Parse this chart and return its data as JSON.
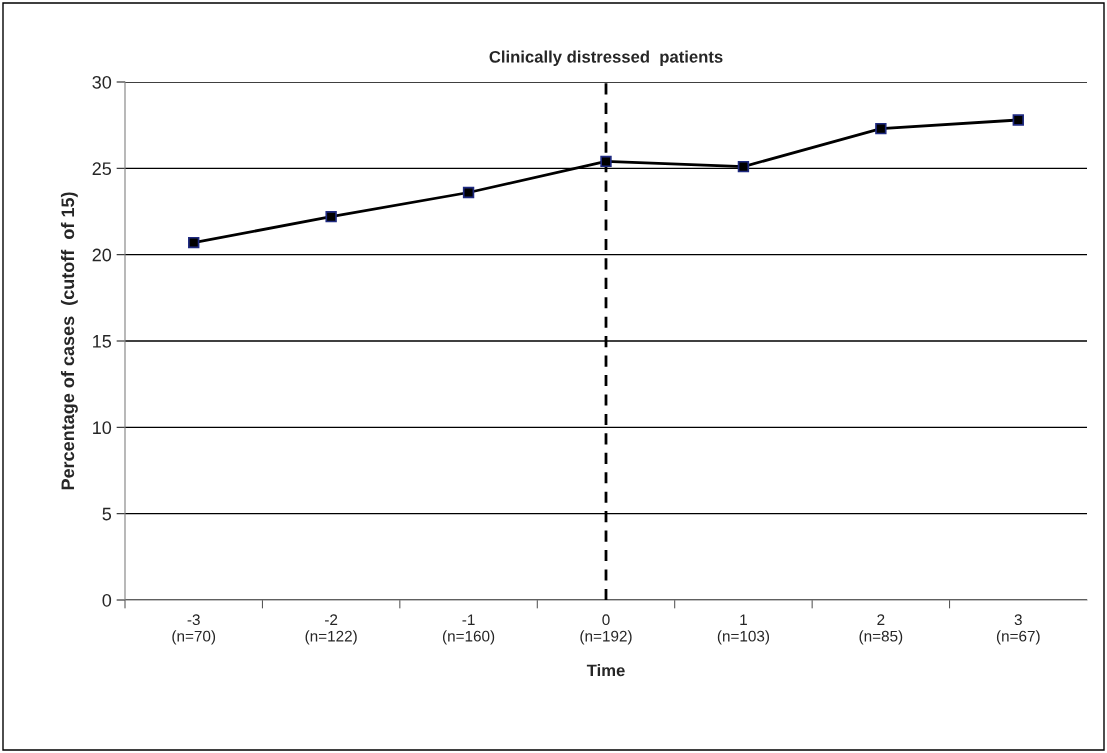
{
  "chart_data": {
    "type": "line",
    "title": "Clinically distressed  patients",
    "xlabel": "Time",
    "ylabel": "Percentage of cases  (cutoff  of 15)",
    "categories": [
      "-3\n(n=70)",
      "-2\n(n=122)",
      "-1\n(n=160)",
      "0\n(n=192)",
      "1\n(n=103)",
      "2\n(n=85)",
      "3\n(n=67)"
    ],
    "series": [
      {
        "color": "#000000",
        "values": [
          20.7,
          22.2,
          23.6,
          25.4,
          25.1,
          27.3,
          27.8
        ]
      }
    ],
    "ylim": [
      0,
      30
    ],
    "yticks": [
      0,
      5,
      10,
      15,
      20,
      25,
      30
    ],
    "grid": "y",
    "marker": "square",
    "line_style": "solid",
    "ref_lines": [
      {
        "axis": "x",
        "value": "0\n(n=192)",
        "color": "#000000",
        "line_style": "dashed"
      }
    ]
  }
}
